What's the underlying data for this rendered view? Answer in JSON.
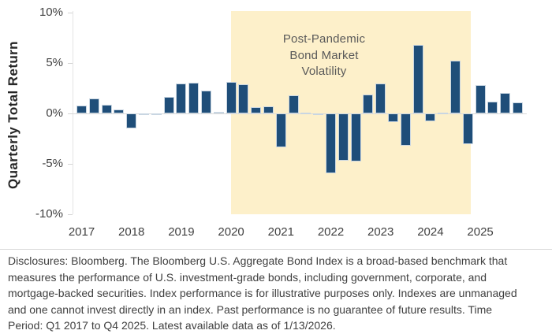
{
  "chart_data": {
    "type": "bar",
    "title": "",
    "xlabel": "",
    "ylabel": "Quarterly Total Return",
    "ylim": [
      -10,
      10
    ],
    "grid": "off",
    "legend": "none",
    "y_tick_labels": [
      "10%",
      "5%",
      "0%",
      "-5%",
      "-10%"
    ],
    "y_tick_values": [
      10,
      5,
      0,
      -5,
      -10
    ],
    "year_labels": [
      "2017",
      "2018",
      "2019",
      "2020",
      "2021",
      "2022",
      "2023",
      "2024",
      "2025"
    ],
    "categories": [
      "Q1 2017",
      "Q2 2017",
      "Q3 2017",
      "Q4 2017",
      "Q1 2018",
      "Q2 2018",
      "Q3 2018",
      "Q4 2018",
      "Q1 2019",
      "Q2 2019",
      "Q3 2019",
      "Q4 2019",
      "Q1 2020",
      "Q2 2020",
      "Q3 2020",
      "Q4 2020",
      "Q1 2021",
      "Q2 2021",
      "Q3 2021",
      "Q4 2021",
      "Q1 2022",
      "Q2 2022",
      "Q3 2022",
      "Q4 2022",
      "Q1 2023",
      "Q2 2023",
      "Q3 2023",
      "Q4 2023",
      "Q1 2024",
      "Q2 2024",
      "Q3 2024",
      "Q4 2024",
      "Q1 2025",
      "Q2 2025",
      "Q3 2025",
      "Q4 2025"
    ],
    "series": [
      {
        "name": "Bloomberg U.S. Aggregate Bond Index quarterly total return (%)",
        "values": [
          0.82,
          1.45,
          0.85,
          0.39,
          -1.46,
          -0.16,
          0.02,
          1.64,
          2.94,
          3.08,
          2.27,
          0.18,
          3.15,
          2.9,
          0.62,
          0.67,
          -3.37,
          1.83,
          0.05,
          0.01,
          -5.93,
          -4.69,
          -4.75,
          1.87,
          2.96,
          -0.84,
          -3.23,
          6.82,
          -0.78,
          0.07,
          5.2,
          -3.06,
          2.78,
          1.21,
          2.03,
          1.1
        ]
      }
    ],
    "highlight_region": {
      "label": "Post-Pandemic Bond Market Volatility",
      "label_lines": [
        "Post-Pandemic",
        "Bond Market",
        "Volatility"
      ],
      "from": "Q1 2020",
      "to": "Q4 2024",
      "color": "#FDF0CA"
    }
  },
  "colors": {
    "bar": "#1F4E79",
    "bar_border": "#C9D6E2",
    "highlight": "#FDF0CA",
    "annotation_text": "#595959",
    "axis_text": "#404040",
    "axis_line": "#E4E4E4",
    "baseline": "#D9D9D9",
    "separator": "#D9D9D9",
    "disclosure_text": "#3F3F3F"
  },
  "disclosure": {
    "text": "Disclosures: Bloomberg. The Bloomberg U.S. Aggregate Bond Index is a broad-based benchmark that measures the performance of U.S. investment-grade bonds, including government, corporate, and mortgage-backed securities. Index performance is for illustrative purposes only. Indexes are unmanaged and one cannot invest directly in an index. Past performance is no guarantee of future results. Time Period: Q1 2017 to Q4 2025. Latest available data as of 1/13/2026."
  }
}
